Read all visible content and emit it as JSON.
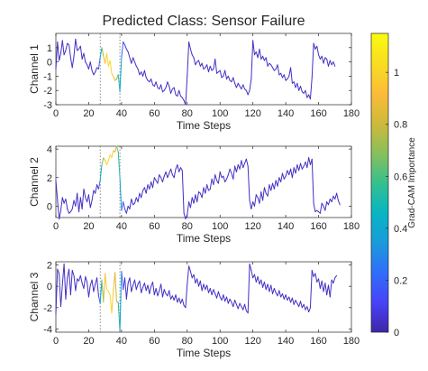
{
  "chart_data": {
    "type": "line",
    "title": "Predicted Class: Sensor Failure",
    "colorbar": {
      "label": "Grad-CAM Importance",
      "range": [
        0,
        1.15
      ],
      "ticks": [
        0,
        0.2,
        0.4,
        0.6,
        0.8,
        1
      ],
      "tick_labels": [
        "0",
        "0.2",
        "0.4",
        "0.6",
        "0.8",
        "1"
      ],
      "colormap": "parula",
      "stops": [
        "#3e26a8",
        "#4743f8",
        "#2f6ff9",
        "#1a9bdb",
        "#08b5c2",
        "#35c08d",
        "#8abf5b",
        "#cfb93a",
        "#fcbc38",
        "#f9dd22",
        "#f9fb0e"
      ]
    },
    "reference_lines": [
      27,
      39
    ],
    "x_label": "Time Steps",
    "x_range": [
      0,
      180
    ],
    "x_ticks": [
      0,
      20,
      40,
      60,
      80,
      100,
      120,
      140,
      160,
      180
    ],
    "x_tick_labels": [
      "0",
      "20",
      "40",
      "60",
      "80",
      "100",
      "120",
      "140",
      "160",
      "180"
    ],
    "importance": [
      [
        0,
        0.04
      ],
      [
        26,
        0.04
      ],
      [
        27,
        0.3
      ],
      [
        28,
        0.55
      ],
      [
        29,
        0.8
      ],
      [
        30,
        0.95
      ],
      [
        32,
        1.05
      ],
      [
        34,
        1.0
      ],
      [
        35,
        0.95
      ],
      [
        36,
        0.85
      ],
      [
        37,
        0.75
      ],
      [
        38,
        0.6
      ],
      [
        39,
        0.45
      ],
      [
        40,
        0.3
      ],
      [
        41,
        0.12
      ],
      [
        43,
        0.04
      ],
      [
        174,
        0.04
      ]
    ],
    "panels": [
      {
        "ylabel": "Channel 1",
        "ylim": [
          -3,
          2
        ],
        "yticks": [
          -3,
          -2,
          -1,
          0,
          1
        ],
        "ytick_labels": [
          "-3",
          "-2",
          "-1",
          "0",
          "1"
        ],
        "values": [
          -0.5,
          1.4,
          0.1,
          0.6,
          1.5,
          0.5,
          0.8,
          1.3,
          1.2,
          0.3,
          -0.4,
          0.4,
          1.6,
          0.8,
          0.9,
          1.1,
          0.2,
          0.6,
          0.0,
          -0.2,
          -0.5,
          0.0,
          -0.6,
          -0.9,
          -0.7,
          -0.4,
          -0.5,
          0.3,
          1.0,
          0.4,
          -0.1,
          0.6,
          -0.3,
          0.1,
          -0.8,
          -1.0,
          -1.3,
          -1.2,
          -0.9,
          -2.1,
          0.3,
          1.4,
          1.2,
          0.9,
          0.7,
          0.3,
          -0.1,
          0.3,
          0.0,
          -0.3,
          -0.5,
          -0.9,
          -0.7,
          -1.0,
          -0.6,
          -1.1,
          -1.3,
          -1.4,
          -1.2,
          -1.6,
          -1.7,
          -1.4,
          -1.8,
          -1.9,
          -1.6,
          -2.1,
          -2.0,
          -1.8,
          -1.4,
          -1.7,
          -2.2,
          -1.9,
          -1.8,
          -2.3,
          -2.4,
          -2.0,
          -2.4,
          -2.5,
          -2.7,
          -3.0,
          -1.0,
          1.4,
          0.9,
          0.5,
          0.3,
          -0.2,
          0.0,
          0.1,
          -0.3,
          -0.1,
          -0.5,
          -0.4,
          -0.2,
          -0.7,
          -0.3,
          -0.6,
          -0.5,
          0.2,
          -0.8,
          -0.7,
          -0.6,
          -1.1,
          -1.0,
          -0.6,
          -1.2,
          -1.0,
          -1.3,
          -1.4,
          -1.1,
          -1.5,
          -1.8,
          -1.5,
          -1.7,
          -1.9,
          -1.6,
          -1.9,
          -2.0,
          -2.3,
          -2.0,
          -1.2,
          1.5,
          0.5,
          0.7,
          0.3,
          0.9,
          0.2,
          0.4,
          0.1,
          0.3,
          -0.3,
          -0.1,
          -0.2,
          -0.4,
          -0.6,
          -0.5,
          -0.2,
          -0.9,
          -0.8,
          -1.1,
          -0.9,
          -1.3,
          -1.2,
          -1.0,
          -0.4,
          -1.5,
          -1.4,
          -1.8,
          -1.5,
          -2.0,
          -1.7,
          -2.1,
          -2.2,
          -2.0,
          -2.5,
          -2.3,
          -2.6,
          -1.1,
          1.3,
          0.9,
          1.1,
          0.5,
          0.2,
          0.4,
          -0.1,
          0.3,
          0.2,
          -0.3,
          0.1,
          -0.2,
          0.0,
          -0.3
        ]
      },
      {
        "ylabel": "Channel 2",
        "ylim": [
          -0.8,
          4.2
        ],
        "yticks": [
          0,
          2,
          4
        ],
        "ytick_labels": [
          "0",
          "2",
          "4"
        ],
        "values": [
          1.8,
          0.4,
          -0.9,
          -0.3,
          0.6,
          0.2,
          0.5,
          -0.2,
          -0.5,
          -0.4,
          -0.2,
          0.4,
          0.0,
          0.9,
          -0.4,
          0.6,
          -0.2,
          1.2,
          0.6,
          0.3,
          0.8,
          -0.1,
          0.4,
          1.1,
          0.9,
          1.5,
          1.2,
          1.8,
          2.9,
          3.4,
          3.2,
          2.9,
          3.2,
          3.6,
          3.4,
          3.9,
          3.8,
          4.2,
          3.8,
          2.0,
          -0.3,
          0.3,
          -0.2,
          -0.5,
          0.0,
          -0.2,
          0.5,
          0.1,
          0.2,
          0.6,
          0.3,
          0.9,
          0.6,
          1.1,
          1.3,
          0.9,
          1.5,
          1.2,
          1.7,
          1.3,
          2.0,
          1.8,
          1.6,
          2.2,
          2.0,
          1.7,
          2.1,
          2.4,
          2.0,
          2.3,
          2.6,
          2.2,
          2.0,
          2.6,
          2.9,
          2.4,
          2.7,
          2.5,
          -0.5,
          -0.9,
          -0.6,
          0.3,
          -0.1,
          0.6,
          0.2,
          0.8,
          0.3,
          1.0,
          0.9,
          0.6,
          1.3,
          0.9,
          1.5,
          1.1,
          1.2,
          1.9,
          1.5,
          2.2,
          1.8,
          1.6,
          2.4,
          2.0,
          2.1,
          1.7,
          1.9,
          2.2,
          2.6,
          2.3,
          1.9,
          2.8,
          2.4,
          2.9,
          2.6,
          3.2,
          2.7,
          3.0,
          3.3,
          2.8,
          0.4,
          -0.2,
          0.3,
          0.0,
          0.8,
          0.6,
          0.2,
          1.0,
          0.4,
          1.3,
          0.9,
          0.7,
          1.5,
          1.1,
          1.6,
          1.2,
          1.8,
          1.4,
          2.0,
          1.7,
          2.3,
          1.9,
          2.1,
          2.5,
          2.2,
          2.6,
          2.0,
          2.7,
          2.3,
          2.9,
          2.5,
          3.0,
          2.6,
          2.8,
          3.1,
          2.7,
          3.4,
          2.9,
          3.3,
          0.2,
          -0.4,
          -0.3,
          -0.4,
          -0.5,
          0.2,
          0.0,
          -0.3,
          0.3,
          0.1,
          0.5,
          0.3,
          0.7,
          0.5,
          0.9,
          0.4,
          0.1
        ]
      },
      {
        "ylabel": "Channel 3",
        "ylim": [
          -4.3,
          2.3
        ],
        "yticks": [
          -4,
          -2,
          0,
          2
        ],
        "ytick_labels": [
          "-4",
          "-2",
          "0",
          "2"
        ],
        "values": [
          -2.6,
          1.6,
          1.2,
          -1.9,
          0.2,
          2.1,
          -1.2,
          0.8,
          1.6,
          -0.8,
          1.5,
          1.0,
          -0.4,
          0.7,
          0.5,
          1.0,
          0.3,
          -0.2,
          0.9,
          0.4,
          -1.0,
          0.1,
          0.6,
          -0.5,
          0.2,
          0.8,
          -0.9,
          -1.6,
          0.6,
          -1.5,
          1.2,
          -0.3,
          -0.5,
          -0.8,
          -2.5,
          -0.4,
          1.3,
          -1.4,
          -1.5,
          -4.2,
          1.4,
          -0.3,
          0.8,
          -1.2,
          0.3,
          0.8,
          -0.5,
          0.1,
          0.6,
          -0.3,
          0.2,
          0.5,
          -0.6,
          -0.1,
          0.3,
          -0.4,
          0.1,
          -0.7,
          0.0,
          0.4,
          -0.8,
          -0.2,
          -0.9,
          -0.4,
          0.2,
          -1.0,
          -0.3,
          -0.7,
          -0.9,
          -0.4,
          -1.2,
          -0.9,
          -1.3,
          -0.8,
          -1.5,
          -1.1,
          -1.6,
          -1.2,
          -1.8,
          -2.0,
          0.2,
          1.9,
          1.4,
          0.8,
          1.1,
          0.3,
          0.7,
          0.0,
          0.5,
          -0.4,
          0.2,
          -0.3,
          0.1,
          -0.6,
          -0.2,
          -0.8,
          -0.3,
          -0.7,
          -1.1,
          -0.5,
          -1.0,
          -1.3,
          -0.8,
          -1.4,
          -1.0,
          -1.6,
          -1.2,
          -1.5,
          -1.9,
          -1.3,
          -1.7,
          -2.1,
          -1.6,
          -1.9,
          -2.2,
          -1.7,
          -2.3,
          -2.5,
          2.1,
          1.5,
          0.8,
          1.1,
          0.4,
          0.9,
          0.2,
          0.6,
          -0.1,
          0.4,
          -0.3,
          0.2,
          -0.5,
          0.1,
          -0.7,
          -0.2,
          -0.6,
          -0.9,
          -0.4,
          -1.0,
          -0.7,
          -1.2,
          -0.8,
          -1.3,
          -1.0,
          -1.5,
          -1.1,
          -1.7,
          -1.3,
          -1.6,
          -1.9,
          -1.4,
          -2.0,
          -1.7,
          -2.2,
          -1.9,
          -2.4,
          -2.0,
          1.5,
          0.9,
          1.2,
          0.4,
          0.7,
          -0.2,
          0.5,
          -0.5,
          0.3,
          -0.8,
          0.1,
          -1.0,
          0.6,
          0.3,
          0.8,
          1.0
        ]
      }
    ]
  }
}
